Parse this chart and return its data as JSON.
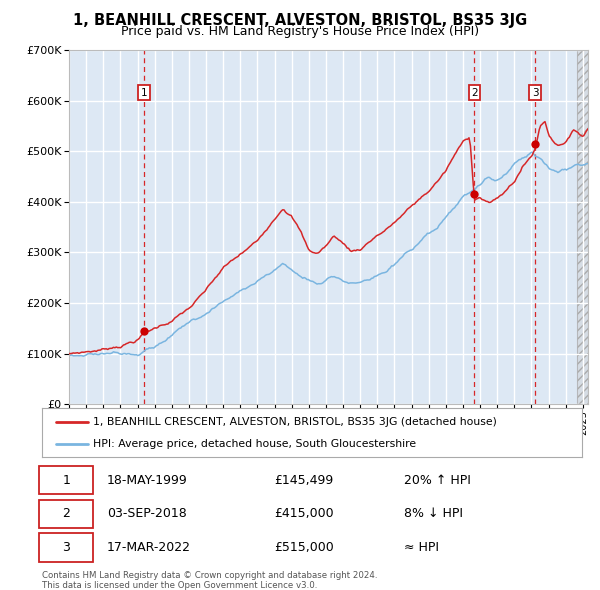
{
  "title": "1, BEANHILL CRESCENT, ALVESTON, BRISTOL, BS35 3JG",
  "subtitle": "Price paid vs. HM Land Registry's House Price Index (HPI)",
  "legend_line1": "1, BEANHILL CRESCENT, ALVESTON, BRISTOL, BS35 3JG (detached house)",
  "legend_line2": "HPI: Average price, detached house, South Gloucestershire",
  "transactions": [
    {
      "num": 1,
      "date_str": "18-MAY-1999",
      "year": 1999.38,
      "price": 145499,
      "label": "20% ↑ HPI"
    },
    {
      "num": 2,
      "date_str": "03-SEP-2018",
      "year": 2018.67,
      "price": 415000,
      "label": "8% ↓ HPI"
    },
    {
      "num": 3,
      "date_str": "17-MAR-2022",
      "year": 2022.21,
      "price": 515000,
      "label": "≈ HPI"
    }
  ],
  "table_rows": [
    [
      1,
      "18-MAY-1999",
      "£145,499",
      "20% ↑ HPI"
    ],
    [
      2,
      "03-SEP-2018",
      "£415,000",
      "8% ↓ HPI"
    ],
    [
      3,
      "17-MAR-2022",
      "£515,000",
      "≈ HPI"
    ]
  ],
  "footer": "Contains HM Land Registry data © Crown copyright and database right 2024.\nThis data is licensed under the Open Government Licence v3.0.",
  "ylim": [
    0,
    700000
  ],
  "xlim_start": 1995.0,
  "xlim_end": 2025.3,
  "bg_color": "#dde8f4",
  "grid_color": "#ffffff",
  "hpi_color": "#7ab5e0",
  "price_color": "#d62728",
  "dot_color": "#cc0000",
  "vline_color": "#d62728",
  "box_edgecolor": "#cc2222",
  "title_fontsize": 10.5,
  "subtitle_fontsize": 9.0,
  "ytick_fontsize": 8,
  "xtick_fontsize": 7
}
